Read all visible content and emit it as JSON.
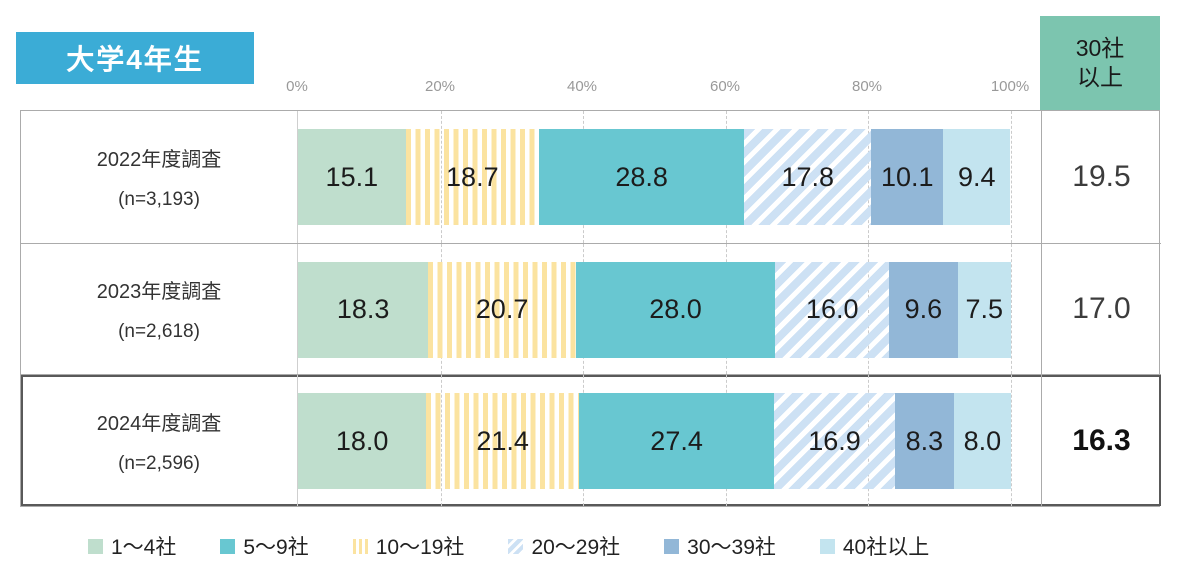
{
  "page": {
    "title_badge": "大学4年生"
  },
  "axis": {
    "ticks": [
      "0%",
      "20%",
      "40%",
      "60%",
      "80%",
      "100%"
    ]
  },
  "summary_header": {
    "line1": "30社",
    "line2": "以上",
    "full_label": "30社以上"
  },
  "chart_data": {
    "type": "bar",
    "stacked": true,
    "orientation": "horizontal",
    "title": "大学4年生",
    "unit": "%",
    "x_range": [
      0,
      100
    ],
    "grid": "dashed-vertical",
    "categories": [
      "1〜4社",
      "5〜9社",
      "10〜19社",
      "20〜29社",
      "30〜39社",
      "40社以上"
    ],
    "summary_column_header": "30社以上",
    "rows": [
      {
        "label": "2022年度調査",
        "n_label": "(n=3,193)",
        "values": [
          "15.1",
          "18.7",
          "28.8",
          "17.8",
          "10.1",
          "9.4"
        ],
        "total_30plus": "19.5",
        "highlighted": false
      },
      {
        "label": "2023年度調査",
        "n_label": "(n=2,618)",
        "values": [
          "18.3",
          "20.7",
          "28.0",
          "16.0",
          "9.6",
          "7.5"
        ],
        "total_30plus": "17.0",
        "highlighted": false
      },
      {
        "label": "2024年度調査",
        "n_label": "(n=2,596)",
        "values": [
          "18.0",
          "21.4",
          "27.4",
          "16.9",
          "8.3",
          "8.0"
        ],
        "total_30plus": "16.3",
        "highlighted": true
      }
    ]
  },
  "legend": {
    "items": [
      {
        "label": "1〜4社",
        "color": "#BFDECD",
        "pattern": "solid"
      },
      {
        "label": "5〜9社",
        "color": "#68C7D1",
        "pattern": "solid"
      },
      {
        "label": "10〜19社",
        "color": "#FBE3A0",
        "pattern": "vertical-stripes"
      },
      {
        "label": "20〜29社",
        "color": "#CDE1F4",
        "pattern": "diagonal-stripes"
      },
      {
        "label": "30〜39社",
        "color": "#92B7D7",
        "pattern": "solid"
      },
      {
        "label": "40社以上",
        "color": "#C3E4EF",
        "pattern": "solid"
      }
    ]
  },
  "colors": {
    "badge_bg": "#3BACD6",
    "badge_text": "#FFFFFF",
    "summary_header_bg": "#7CC5AF",
    "grid_line": "#CBCBCB",
    "border_light": "#ABABAB",
    "border_dark": "#595959",
    "axis_text": "#999999",
    "number_text": "#1C1C1C"
  }
}
